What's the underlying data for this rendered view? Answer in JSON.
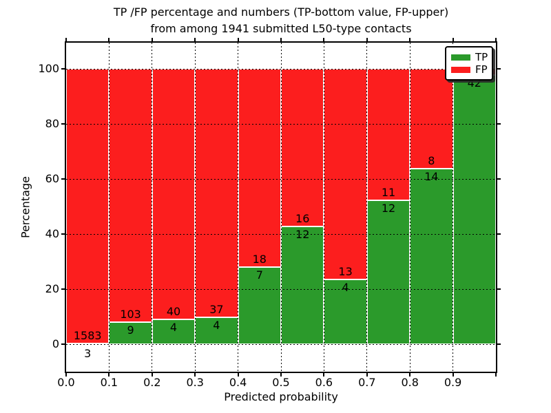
{
  "title": {
    "line1": "TP /FP percentage and numbers (TP-bottom value, FP-upper)",
    "line2": "from among 1941 submitted L50-type contacts"
  },
  "axes": {
    "xlabel": "Predicted probability",
    "ylabel": "Percentage",
    "x_tick_labels": [
      "0.0",
      "0.1",
      "0.2",
      "0.3",
      "0.4",
      "0.5",
      "0.6",
      "0.7",
      "0.8",
      "0.9"
    ],
    "y_tick_labels": [
      "0",
      "20",
      "40",
      "60",
      "80",
      "100"
    ],
    "y_tick_values": [
      0,
      20,
      40,
      60,
      80,
      100
    ]
  },
  "legend": {
    "items": [
      {
        "label": "TP",
        "color": "#2b9a2b"
      },
      {
        "label": "FP",
        "color": "#fc1e1e"
      }
    ]
  },
  "colors": {
    "tp": "#2b9a2b",
    "fp": "#fc1e1e",
    "grid": "#000000",
    "bar_edge": "#ffffff"
  },
  "chart_data": {
    "type": "bar",
    "stacked": true,
    "normalized_to_percent": true,
    "title": "TP /FP percentage and numbers (TP-bottom value, FP-upper) from among 1941 submitted L50-type contacts",
    "xlabel": "Predicted probability",
    "ylabel": "Percentage",
    "bin_edges": [
      0.0,
      0.1,
      0.2,
      0.3,
      0.4,
      0.5,
      0.6,
      0.7,
      0.8,
      0.9,
      1.0
    ],
    "categories": [
      "0.0-0.1",
      "0.1-0.2",
      "0.2-0.3",
      "0.3-0.4",
      "0.4-0.5",
      "0.5-0.6",
      "0.6-0.7",
      "0.7-0.8",
      "0.8-0.9",
      "0.9-1.0"
    ],
    "series": [
      {
        "name": "TP",
        "counts": [
          3,
          9,
          4,
          4,
          7,
          12,
          4,
          12,
          14,
          42
        ]
      },
      {
        "name": "FP",
        "counts": [
          1583,
          103,
          40,
          37,
          18,
          16,
          13,
          11,
          8,
          null
        ]
      }
    ],
    "tp_labels": [
      "3",
      "9",
      "4",
      "4",
      "7",
      "12",
      "4",
      "12",
      "14",
      "42"
    ],
    "fp_labels": [
      "1583",
      "103",
      "40",
      "37",
      "18",
      "16",
      "13",
      "11",
      "8",
      ""
    ],
    "fp_last_label_hidden_by_legend": true,
    "tp_percent": [
      0.19,
      8.04,
      9.09,
      9.76,
      28.0,
      42.86,
      23.53,
      52.17,
      63.64,
      97.67
    ],
    "total_contacts": 1941,
    "xlim": [
      0.0,
      1.0
    ],
    "ylim": [
      -10,
      110
    ],
    "grid": "dotted",
    "legend_position": "upper right"
  }
}
